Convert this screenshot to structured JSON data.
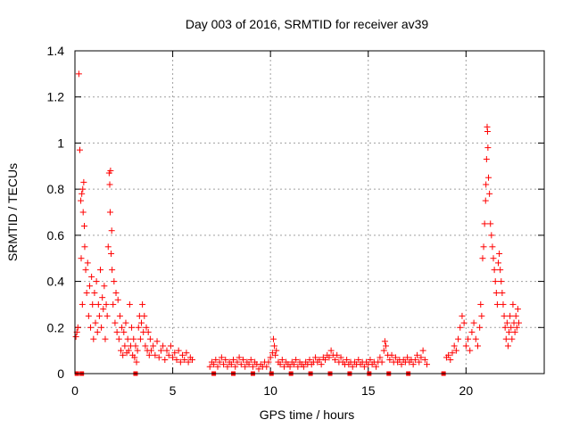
{
  "chart_data": {
    "type": "scatter",
    "title": "Day 003 of 2016, SRMTID for receiver av39",
    "xlabel": "GPS time / hours",
    "ylabel": "SRMTID / TECUs",
    "xlim": [
      0,
      24
    ],
    "ylim": [
      0,
      1.4
    ],
    "xticks": [
      0,
      5,
      10,
      15,
      20
    ],
    "yticks": [
      0,
      0.2,
      0.4,
      0.6,
      0.8,
      1,
      1.2,
      1.4
    ],
    "ytick_labels": [
      "0",
      "0.2",
      "0.4",
      "0.6",
      "0.8",
      "1",
      "1.2",
      "1.4"
    ],
    "grid": true,
    "marker": "+",
    "series": [
      {
        "name": "SRMTID",
        "color": "#ff0000",
        "points": [
          [
            0.05,
            0.16
          ],
          [
            0.1,
            0.18
          ],
          [
            0.15,
            0.2
          ],
          [
            0.2,
            1.3
          ],
          [
            0.25,
            0.97
          ],
          [
            0.3,
            0.75
          ],
          [
            0.32,
            0.5
          ],
          [
            0.35,
            0.78
          ],
          [
            0.38,
            0.3
          ],
          [
            0.4,
            0.8
          ],
          [
            0.42,
            0.7
          ],
          [
            0.45,
            0.83
          ],
          [
            0.48,
            0.64
          ],
          [
            0.5,
            0.55
          ],
          [
            0.55,
            0.45
          ],
          [
            0.6,
            0.35
          ],
          [
            0.65,
            0.48
          ],
          [
            0.7,
            0.25
          ],
          [
            0.75,
            0.38
          ],
          [
            0.8,
            0.2
          ],
          [
            0.85,
            0.42
          ],
          [
            0.9,
            0.3
          ],
          [
            0.95,
            0.15
          ],
          [
            1.0,
            0.35
          ],
          [
            1.05,
            0.22
          ],
          [
            1.1,
            0.4
          ],
          [
            1.15,
            0.18
          ],
          [
            1.2,
            0.3
          ],
          [
            1.25,
            0.25
          ],
          [
            1.3,
            0.45
          ],
          [
            1.35,
            0.2
          ],
          [
            1.4,
            0.33
          ],
          [
            1.45,
            0.28
          ],
          [
            1.5,
            0.38
          ],
          [
            1.55,
            0.15
          ],
          [
            1.6,
            0.3
          ],
          [
            1.65,
            0.25
          ],
          [
            1.7,
            0.55
          ],
          [
            1.75,
            0.87
          ],
          [
            1.78,
            0.82
          ],
          [
            1.8,
            0.7
          ],
          [
            1.82,
            0.88
          ],
          [
            1.85,
            0.52
          ],
          [
            1.88,
            0.62
          ],
          [
            1.9,
            0.45
          ],
          [
            1.95,
            0.3
          ],
          [
            2.0,
            0.4
          ],
          [
            2.05,
            0.22
          ],
          [
            2.1,
            0.35
          ],
          [
            2.15,
            0.18
          ],
          [
            2.2,
            0.32
          ],
          [
            2.25,
            0.15
          ],
          [
            2.3,
            0.25
          ],
          [
            2.35,
            0.1
          ],
          [
            2.4,
            0.2
          ],
          [
            2.45,
            0.08
          ],
          [
            2.5,
            0.18
          ],
          [
            2.55,
            0.12
          ],
          [
            2.6,
            0.22
          ],
          [
            2.65,
            0.09
          ],
          [
            2.7,
            0.15
          ],
          [
            2.75,
            0.1
          ],
          [
            2.8,
            0.3
          ],
          [
            2.85,
            0.12
          ],
          [
            2.9,
            0.2
          ],
          [
            2.95,
            0.08
          ],
          [
            3.0,
            0.15
          ],
          [
            3.05,
            0.07
          ],
          [
            3.1,
            0.12
          ],
          [
            3.15,
            0.05
          ],
          [
            3.2,
            0.1
          ],
          [
            3.25,
            0.2
          ],
          [
            3.3,
            0.25
          ],
          [
            3.35,
            0.15
          ],
          [
            3.4,
            0.22
          ],
          [
            3.45,
            0.3
          ],
          [
            3.5,
            0.18
          ],
          [
            3.55,
            0.25
          ],
          [
            3.6,
            0.12
          ],
          [
            3.65,
            0.2
          ],
          [
            3.7,
            0.1
          ],
          [
            3.75,
            0.18
          ],
          [
            3.8,
            0.08
          ],
          [
            3.85,
            0.15
          ],
          [
            3.9,
            0.1
          ],
          [
            4.0,
            0.12
          ],
          [
            4.1,
            0.08
          ],
          [
            4.2,
            0.14
          ],
          [
            4.3,
            0.07
          ],
          [
            4.4,
            0.1
          ],
          [
            4.5,
            0.12
          ],
          [
            4.6,
            0.06
          ],
          [
            4.7,
            0.1
          ],
          [
            4.8,
            0.08
          ],
          [
            4.9,
            0.12
          ],
          [
            5.0,
            0.07
          ],
          [
            5.1,
            0.09
          ],
          [
            5.2,
            0.06
          ],
          [
            5.3,
            0.1
          ],
          [
            5.4,
            0.05
          ],
          [
            5.5,
            0.08
          ],
          [
            5.6,
            0.06
          ],
          [
            5.7,
            0.09
          ],
          [
            5.8,
            0.05
          ],
          [
            5.9,
            0.07
          ],
          [
            6.0,
            0.06
          ],
          [
            6.9,
            0.03
          ],
          [
            7.0,
            0.05
          ],
          [
            7.1,
            0.04
          ],
          [
            7.2,
            0.06
          ],
          [
            7.3,
            0.03
          ],
          [
            7.4,
            0.05
          ],
          [
            7.5,
            0.07
          ],
          [
            7.6,
            0.04
          ],
          [
            7.7,
            0.06
          ],
          [
            7.8,
            0.03
          ],
          [
            7.9,
            0.05
          ],
          [
            8.0,
            0.04
          ],
          [
            8.1,
            0.06
          ],
          [
            8.2,
            0.03
          ],
          [
            8.3,
            0.05
          ],
          [
            8.4,
            0.07
          ],
          [
            8.5,
            0.04
          ],
          [
            8.6,
            0.06
          ],
          [
            8.7,
            0.03
          ],
          [
            8.8,
            0.05
          ],
          [
            8.9,
            0.04
          ],
          [
            9.0,
            0.06
          ],
          [
            9.1,
            0.03
          ],
          [
            9.2,
            0.05
          ],
          [
            9.3,
            0.04
          ],
          [
            9.4,
            0.02
          ],
          [
            9.5,
            0.04
          ],
          [
            9.6,
            0.03
          ],
          [
            9.7,
            0.05
          ],
          [
            9.8,
            0.03
          ],
          [
            9.9,
            0.05
          ],
          [
            10.0,
            0.07
          ],
          [
            10.1,
            0.09
          ],
          [
            10.15,
            0.15
          ],
          [
            10.2,
            0.12
          ],
          [
            10.25,
            0.08
          ],
          [
            10.3,
            0.1
          ],
          [
            10.4,
            0.05
          ],
          [
            10.5,
            0.04
          ],
          [
            10.6,
            0.06
          ],
          [
            10.7,
            0.03
          ],
          [
            10.8,
            0.05
          ],
          [
            10.9,
            0.04
          ],
          [
            11.0,
            0.03
          ],
          [
            11.1,
            0.05
          ],
          [
            11.2,
            0.04
          ],
          [
            11.3,
            0.06
          ],
          [
            11.4,
            0.03
          ],
          [
            11.5,
            0.05
          ],
          [
            11.6,
            0.04
          ],
          [
            11.7,
            0.03
          ],
          [
            11.8,
            0.05
          ],
          [
            11.9,
            0.04
          ],
          [
            12.0,
            0.06
          ],
          [
            12.1,
            0.04
          ],
          [
            12.2,
            0.05
          ],
          [
            12.3,
            0.07
          ],
          [
            12.4,
            0.05
          ],
          [
            12.5,
            0.06
          ],
          [
            12.6,
            0.04
          ],
          [
            12.7,
            0.07
          ],
          [
            12.8,
            0.06
          ],
          [
            12.9,
            0.08
          ],
          [
            13.0,
            0.07
          ],
          [
            13.1,
            0.1
          ],
          [
            13.2,
            0.08
          ],
          [
            13.3,
            0.06
          ],
          [
            13.4,
            0.08
          ],
          [
            13.5,
            0.05
          ],
          [
            13.6,
            0.07
          ],
          [
            13.7,
            0.05
          ],
          [
            13.8,
            0.04
          ],
          [
            13.9,
            0.06
          ],
          [
            14.0,
            0.04
          ],
          [
            14.1,
            0.05
          ],
          [
            14.2,
            0.03
          ],
          [
            14.3,
            0.05
          ],
          [
            14.4,
            0.04
          ],
          [
            14.5,
            0.06
          ],
          [
            14.6,
            0.04
          ],
          [
            14.7,
            0.05
          ],
          [
            14.8,
            0.03
          ],
          [
            14.9,
            0.05
          ],
          [
            15.0,
            0.04
          ],
          [
            15.1,
            0.06
          ],
          [
            15.2,
            0.04
          ],
          [
            15.3,
            0.05
          ],
          [
            15.4,
            0.03
          ],
          [
            15.5,
            0.05
          ],
          [
            15.6,
            0.07
          ],
          [
            15.7,
            0.05
          ],
          [
            15.8,
            0.1
          ],
          [
            15.85,
            0.14
          ],
          [
            15.9,
            0.12
          ],
          [
            16.0,
            0.08
          ],
          [
            16.1,
            0.06
          ],
          [
            16.2,
            0.08
          ],
          [
            16.3,
            0.05
          ],
          [
            16.4,
            0.07
          ],
          [
            16.5,
            0.05
          ],
          [
            16.6,
            0.06
          ],
          [
            16.7,
            0.04
          ],
          [
            16.8,
            0.06
          ],
          [
            16.9,
            0.05
          ],
          [
            17.0,
            0.07
          ],
          [
            17.1,
            0.05
          ],
          [
            17.2,
            0.06
          ],
          [
            17.3,
            0.04
          ],
          [
            17.4,
            0.06
          ],
          [
            17.5,
            0.08
          ],
          [
            17.6,
            0.05
          ],
          [
            17.7,
            0.07
          ],
          [
            17.8,
            0.1
          ],
          [
            17.9,
            0.06
          ],
          [
            18.0,
            0.04
          ],
          [
            19.0,
            0.07
          ],
          [
            19.1,
            0.08
          ],
          [
            19.2,
            0.06
          ],
          [
            19.3,
            0.09
          ],
          [
            19.4,
            0.12
          ],
          [
            19.5,
            0.1
          ],
          [
            19.6,
            0.15
          ],
          [
            19.7,
            0.2
          ],
          [
            19.8,
            0.25
          ],
          [
            19.9,
            0.22
          ],
          [
            20.0,
            0.12
          ],
          [
            20.1,
            0.15
          ],
          [
            20.2,
            0.1
          ],
          [
            20.3,
            0.18
          ],
          [
            20.4,
            0.22
          ],
          [
            20.5,
            0.15
          ],
          [
            20.6,
            0.12
          ],
          [
            20.7,
            0.2
          ],
          [
            20.75,
            0.3
          ],
          [
            20.8,
            0.25
          ],
          [
            20.85,
            0.5
          ],
          [
            20.9,
            0.55
          ],
          [
            20.95,
            0.65
          ],
          [
            21.0,
            0.75
          ],
          [
            21.02,
            0.82
          ],
          [
            21.05,
            0.93
          ],
          [
            21.08,
            1.07
          ],
          [
            21.1,
            1.05
          ],
          [
            21.12,
            0.98
          ],
          [
            21.15,
            0.85
          ],
          [
            21.2,
            0.78
          ],
          [
            21.25,
            0.65
          ],
          [
            21.3,
            0.6
          ],
          [
            21.35,
            0.55
          ],
          [
            21.4,
            0.5
          ],
          [
            21.45,
            0.45
          ],
          [
            21.5,
            0.4
          ],
          [
            21.55,
            0.35
          ],
          [
            21.6,
            0.3
          ],
          [
            21.65,
            0.48
          ],
          [
            21.7,
            0.52
          ],
          [
            21.75,
            0.45
          ],
          [
            21.8,
            0.4
          ],
          [
            21.85,
            0.35
          ],
          [
            21.9,
            0.3
          ],
          [
            21.95,
            0.25
          ],
          [
            22.0,
            0.2
          ],
          [
            22.05,
            0.15
          ],
          [
            22.1,
            0.22
          ],
          [
            22.15,
            0.12
          ],
          [
            22.2,
            0.18
          ],
          [
            22.25,
            0.25
          ],
          [
            22.3,
            0.2
          ],
          [
            22.35,
            0.15
          ],
          [
            22.4,
            0.3
          ],
          [
            22.45,
            0.22
          ],
          [
            22.5,
            0.18
          ],
          [
            22.55,
            0.25
          ],
          [
            22.6,
            0.2
          ],
          [
            22.65,
            0.28
          ],
          [
            22.7,
            0.22
          ]
        ]
      }
    ],
    "zero_markers": [
      0.1,
      0.35,
      3.1,
      7.1,
      8.1,
      9.1,
      10.05,
      11.05,
      12.05,
      13.05,
      14.05,
      15.05,
      16.05,
      17.05,
      18.85
    ]
  }
}
